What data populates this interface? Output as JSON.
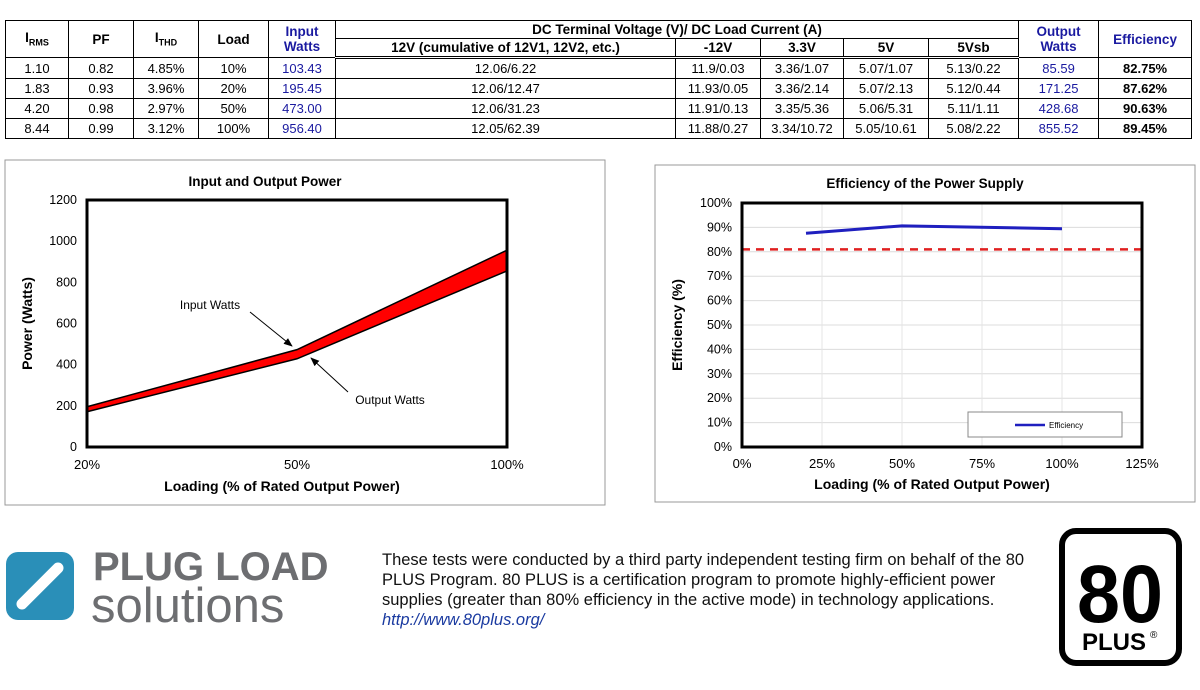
{
  "table": {
    "header": [
      {
        "main": "I",
        "sub": "RMS"
      },
      "PF",
      {
        "main": "I",
        "sub": "THD"
      },
      "Load",
      "Input Watts",
      "DC Terminal Voltage (V)/ DC Load Current (A)",
      "Output Watts",
      "Efficiency"
    ],
    "subheader": [
      "12V (cumulative of 12V1, 12V2, etc.)",
      "-12V",
      "3.3V",
      "5V",
      "5Vsb"
    ],
    "rows": [
      [
        "1.10",
        "0.82",
        "4.85%",
        "10%",
        "103.43",
        "12.06/6.22",
        "11.9/0.03",
        "3.36/1.07",
        "5.07/1.07",
        "5.13/0.22",
        "85.59",
        "82.75%"
      ],
      [
        "1.83",
        "0.93",
        "3.96%",
        "20%",
        "195.45",
        "12.06/12.47",
        "11.93/0.05",
        "3.36/2.14",
        "5.07/2.13",
        "5.12/0.44",
        "171.25",
        "87.62%"
      ],
      [
        "4.20",
        "0.98",
        "2.97%",
        "50%",
        "473.00",
        "12.06/31.23",
        "11.91/0.13",
        "3.35/5.36",
        "5.06/5.31",
        "5.11/1.11",
        "428.68",
        "90.63%"
      ],
      [
        "8.44",
        "0.99",
        "3.12%",
        "100%",
        "956.40",
        "12.05/62.39",
        "11.88/0.27",
        "3.34/10.72",
        "5.05/10.61",
        "5.08/2.22",
        "855.52",
        "89.45%"
      ]
    ]
  },
  "chart_data": [
    {
      "type": "area",
      "title": "Input and Output Power",
      "x_label": "Loading (% of Rated Output Power)",
      "y_label": "Power (Watts)",
      "categories": [
        "20%",
        "50%",
        "100%"
      ],
      "series": [
        {
          "name": "Input Watts",
          "color": "#000000",
          "values": [
            195.45,
            473.0,
            956.4
          ]
        },
        {
          "name": "Output Watts",
          "color": "#000000",
          "values": [
            171.25,
            428.68,
            855.52
          ]
        }
      ],
      "fill": "#ff0000",
      "ylim": [
        0,
        1200
      ],
      "yticks": [
        0,
        200,
        400,
        600,
        800,
        1000,
        1200
      ],
      "grid": false
    },
    {
      "type": "line",
      "title": "Efficiency of the Power Supply",
      "x_label": "Loading (% of Rated Output Power)",
      "y_label": "Efficiency (%)",
      "x": [
        20,
        50,
        100
      ],
      "series": [
        {
          "name": "Efficiency",
          "color": "#1f1fbf",
          "values": [
            87.62,
            90.63,
            89.45
          ]
        }
      ],
      "xlim": [
        0,
        125
      ],
      "xticks": [
        {
          "value": 0,
          "label": "0%"
        },
        {
          "value": 25,
          "label": "25%"
        },
        {
          "value": 50,
          "label": "50%"
        },
        {
          "value": 75,
          "label": "75%"
        },
        {
          "value": 100,
          "label": "100%"
        },
        {
          "value": 125,
          "label": "125%"
        }
      ],
      "ylim": [
        0,
        100
      ],
      "yticks": [
        {
          "value": 0,
          "label": "0%"
        },
        {
          "value": 10,
          "label": "10%"
        },
        {
          "value": 20,
          "label": "20%"
        },
        {
          "value": 30,
          "label": "30%"
        },
        {
          "value": 40,
          "label": "40%"
        },
        {
          "value": 50,
          "label": "50%"
        },
        {
          "value": 60,
          "label": "60%"
        },
        {
          "value": 70,
          "label": "70%"
        },
        {
          "value": 80,
          "label": "80%"
        },
        {
          "value": 90,
          "label": "90%"
        },
        {
          "value": 100,
          "label": "100%"
        }
      ],
      "reference_line": {
        "value": 81,
        "color": "#e02020"
      },
      "grid": true,
      "legend": "lower right"
    }
  ],
  "footer": {
    "logo_line1": "PLUG LOAD",
    "logo_line2": "solutions",
    "text": "These tests were conducted by a third party independent testing firm on behalf of the 80 PLUS Program. 80 PLUS is a certification program to promote highly-efficient power supplies (greater than 80% efficiency in the active mode) in technology applications.",
    "link": "http://www.80plus.org/",
    "badge_number": "80",
    "badge_word": "PLUS",
    "badge_mark": "®"
  }
}
